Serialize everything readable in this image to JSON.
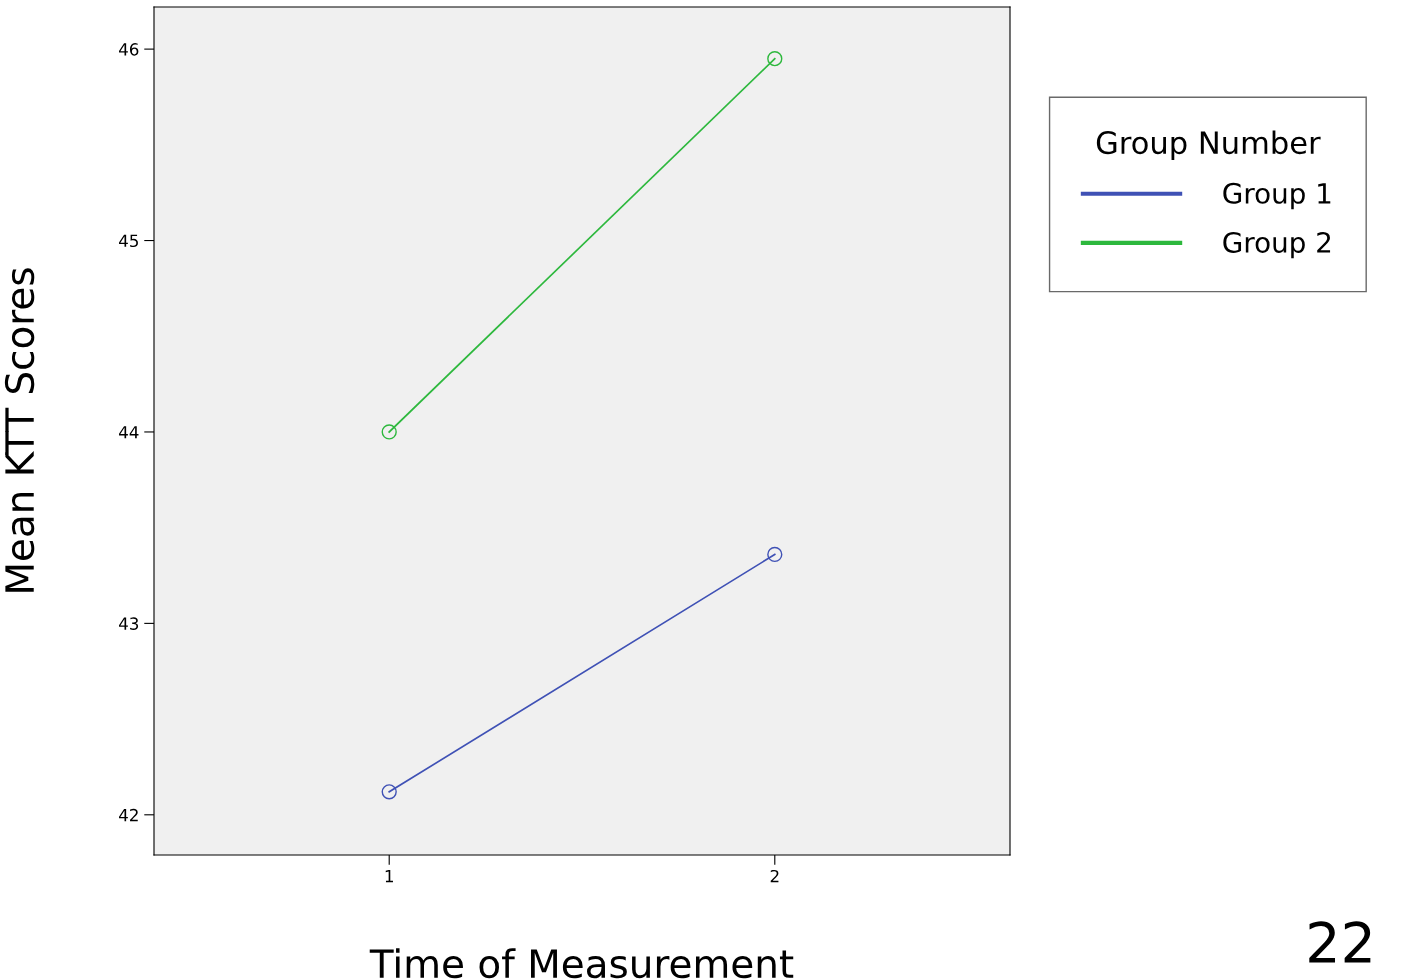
{
  "chart_data": {
    "type": "line",
    "xlabel": "Time of Measurement",
    "ylabel": "Mean KTT Scores",
    "legend_title": "Group Number",
    "x": [
      1,
      2
    ],
    "series": [
      {
        "name": "Group 1",
        "color": "#3f51b5",
        "values": [
          42.12,
          43.36
        ]
      },
      {
        "name": "Group 2",
        "color": "#2db83d",
        "values": [
          44.0,
          45.95
        ]
      }
    ],
    "xlim": [
      0.39,
      2.61
    ],
    "xticks": [
      1,
      2
    ],
    "ylim": [
      41.79,
      46.22
    ],
    "yticks": [
      42,
      43,
      44,
      45,
      46
    ],
    "marker": "circle",
    "line_style": "solid",
    "grid": false,
    "legend": "right",
    "annotations": [
      "22"
    ]
  }
}
